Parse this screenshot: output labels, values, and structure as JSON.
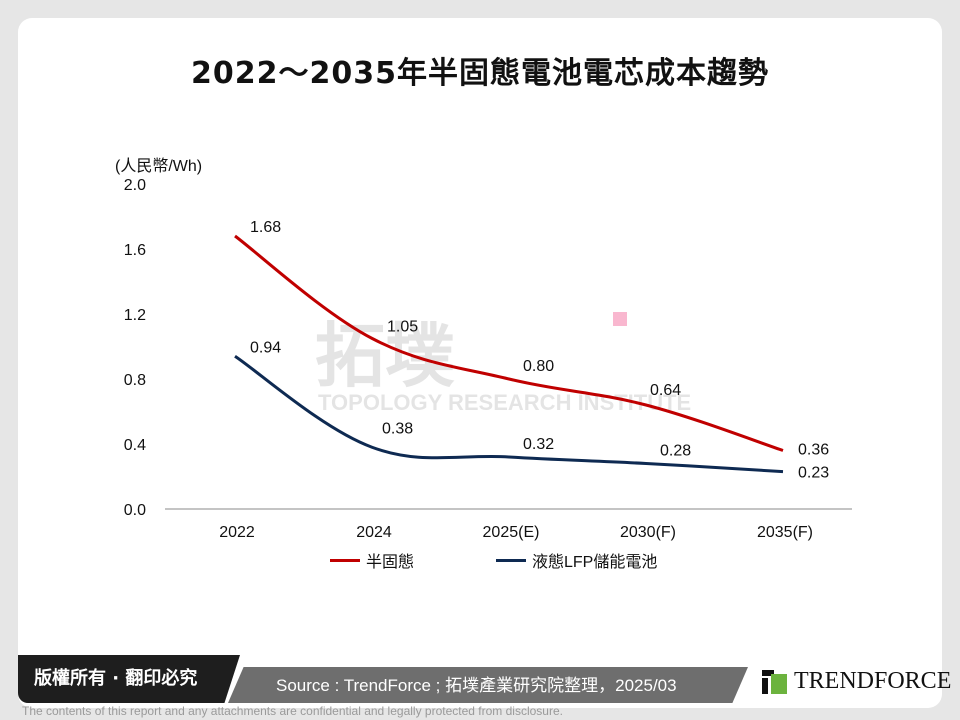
{
  "chart_data": {
    "type": "line",
    "title": "2022～2035年半固態電池電芯成本趨勢",
    "ylabel": "(人民幣/Wh)",
    "xlabel": "",
    "categories": [
      "2022",
      "2024",
      "2025(E)",
      "2030(F)",
      "2035(F)"
    ],
    "ylim": [
      0,
      2.0
    ],
    "yticks": [
      "0.0",
      "0.4",
      "0.8",
      "1.2",
      "1.6",
      "2.0"
    ],
    "grid": false,
    "legend_position": "bottom",
    "series": [
      {
        "name": "半固態",
        "color": "#c00000",
        "values": [
          1.68,
          1.05,
          0.8,
          0.64,
          0.36
        ],
        "labels": [
          "1.68",
          "1.05",
          "0.80",
          "0.64",
          "0.36"
        ]
      },
      {
        "name": "液態LFP儲能電池",
        "color": "#0e2a52",
        "values": [
          0.94,
          0.38,
          0.32,
          0.28,
          0.23
        ],
        "labels": [
          "0.94",
          "0.38",
          "0.32",
          "0.28",
          "0.23"
        ]
      }
    ]
  },
  "footer": {
    "copyright": "版權所有 · 翻印必究",
    "source": "Source : TrendForce ; 拓墣產業研究院整理，2025/03",
    "logo": "TRENDFORCE",
    "disclaimer": "The contents of this report and any attachments are confidential and legally protected from disclosure."
  },
  "watermark": "拓墣 TOPOLOGY RESEARCH INSTITUTE"
}
